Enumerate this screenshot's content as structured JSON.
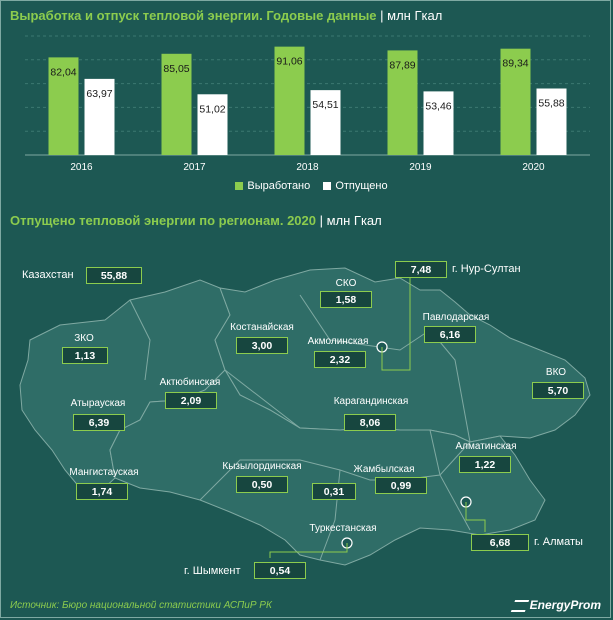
{
  "chart1": {
    "title": "Выработка и отпуск тепловой энергии. Годовые данные",
    "unit": "| млн Гкал",
    "legend": [
      "Выработано",
      "Отпущено"
    ],
    "colors": {
      "produced": "#8ccc4e",
      "released": "#ffffff"
    }
  },
  "chart_data": [
    {
      "type": "bar",
      "categories": [
        "2016",
        "2017",
        "2018",
        "2019",
        "2020"
      ],
      "series": [
        {
          "name": "Выработано",
          "values": [
            82.04,
            85.05,
            91.06,
            87.89,
            89.34
          ]
        },
        {
          "name": "Отпущено",
          "values": [
            63.97,
            51.02,
            54.51,
            53.46,
            55.88
          ]
        }
      ],
      "value_labels": {
        "Выработано": [
          "82,04",
          "85,05",
          "91,06",
          "87,89",
          "89,34"
        ],
        "Отпущено": [
          "63,97",
          "51,02",
          "54,51",
          "53,46",
          "55,88"
        ]
      },
      "title": "Выработка и отпуск тепловой энергии. Годовые данные",
      "ylim": [
        0,
        100
      ]
    }
  ],
  "chart2": {
    "title": "Отпущено тепловой энергии по регионам. 2020",
    "unit": "| млн Гкал",
    "total_label": "Казахстан",
    "total_value": "55,88",
    "regions": [
      {
        "name": "ЗКО",
        "value": "1,13"
      },
      {
        "name": "Атырауская",
        "value": "6,39"
      },
      {
        "name": "Мангистауская",
        "value": "1,74"
      },
      {
        "name": "Актюбинская",
        "value": "2,09"
      },
      {
        "name": "Костанайская",
        "value": "3,00"
      },
      {
        "name": "СКО",
        "value": "1,58"
      },
      {
        "name": "Акмолинская",
        "value": "2,32"
      },
      {
        "name": "Павлодарская",
        "value": "6,16"
      },
      {
        "name": "ВКО",
        "value": "5,70"
      },
      {
        "name": "Карагандинская",
        "value": "8,06"
      },
      {
        "name": "Кызылординская",
        "value": "0,50"
      },
      {
        "name": "Жамбылская",
        "value": "0,99"
      },
      {
        "name": "Алматинская",
        "value": "1,22"
      },
      {
        "name": "Туркестанская",
        "value": "0,31"
      }
    ],
    "cities": [
      {
        "name": "г. Нур-Султан",
        "value": "7,48"
      },
      {
        "name": "г. Алматы",
        "value": "6,68"
      },
      {
        "name": "г. Шымкент",
        "value": "0,54"
      }
    ]
  },
  "footer": {
    "source": "Источник: Бюро национальной  статистики АСПиР РК",
    "brand": "EnergyProm"
  }
}
